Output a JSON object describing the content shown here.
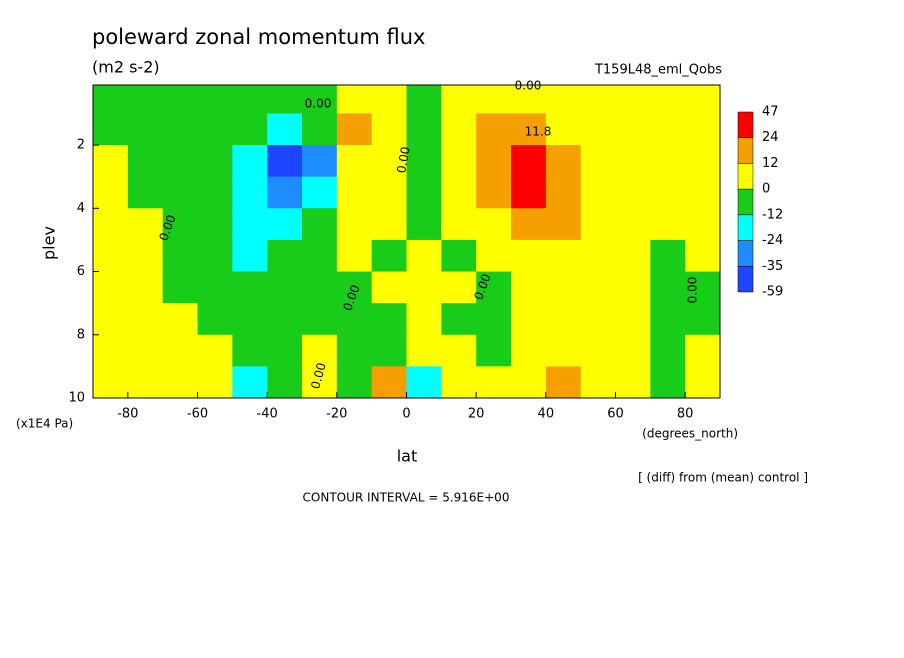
{
  "chart_data": {
    "type": "contourf",
    "title": "poleward zonal momentum flux",
    "subtitle": "(m2 s-2)",
    "dataset": "T159L48_eml_Qobs",
    "x_label": "lat",
    "x_units": "(degrees_north)",
    "y_label": "plev",
    "y_units": "(x1E4 Pa)",
    "note": "[ (diff) from (mean) control ]",
    "contour_interval": "CONTOUR INTERVAL = 5.916E+00",
    "xlim": [
      -90,
      90
    ],
    "ylim": [
      10,
      0.1
    ],
    "xticks": [
      -80,
      -60,
      -40,
      -20,
      0,
      20,
      40,
      60,
      80
    ],
    "yticks": [
      2,
      4,
      6,
      8,
      10
    ],
    "x": [
      -85,
      -75,
      -65,
      -55,
      -45,
      -35,
      -25,
      -15,
      -5,
      5,
      15,
      25,
      35,
      45,
      55,
      65,
      75,
      85
    ],
    "y": [
      0.5,
      1.5,
      2.5,
      3.5,
      4.5,
      5.5,
      6.5,
      7.5,
      8.5,
      9.5
    ],
    "z": [
      [
        -5,
        -5,
        -5,
        -5,
        -5,
        -5,
        -5,
        5,
        5,
        -5,
        5,
        5,
        5,
        5,
        5,
        5,
        5,
        5
      ],
      [
        -5,
        -5,
        -5,
        -5,
        -5,
        -18,
        -5,
        18,
        5,
        -5,
        5,
        18,
        18,
        5,
        5,
        5,
        5,
        5
      ],
      [
        5,
        -5,
        -5,
        -5,
        -18,
        -45,
        -30,
        5,
        5,
        -5,
        5,
        18,
        35,
        18,
        5,
        5,
        5,
        5
      ],
      [
        5,
        -5,
        -5,
        -5,
        -18,
        -30,
        -18,
        5,
        5,
        -5,
        5,
        18,
        35,
        18,
        5,
        5,
        5,
        5
      ],
      [
        5,
        5,
        -5,
        -5,
        -18,
        -18,
        -5,
        5,
        5,
        -5,
        5,
        5,
        18,
        18,
        5,
        5,
        5,
        5
      ],
      [
        5,
        5,
        -5,
        -5,
        -18,
        -5,
        -5,
        5,
        -5,
        5,
        -5,
        5,
        5,
        5,
        5,
        5,
        -5,
        5
      ],
      [
        5,
        5,
        -5,
        -5,
        -5,
        -5,
        -5,
        -5,
        5,
        5,
        5,
        -5,
        5,
        5,
        5,
        5,
        -5,
        -5
      ],
      [
        5,
        5,
        5,
        -5,
        -5,
        -5,
        -5,
        -5,
        -5,
        5,
        -5,
        -5,
        5,
        5,
        5,
        5,
        -5,
        -5
      ],
      [
        5,
        5,
        5,
        5,
        -5,
        -5,
        5,
        -5,
        -5,
        5,
        5,
        -5,
        5,
        5,
        5,
        5,
        -5,
        5
      ],
      [
        5,
        5,
        5,
        5,
        -18,
        -5,
        5,
        -5,
        18,
        -18,
        5,
        5,
        5,
        18,
        5,
        5,
        -5,
        5
      ]
    ],
    "levels": [
      47,
      24,
      12,
      0,
      -12,
      -24,
      -35,
      -59
    ],
    "colors": [
      "#ff0000",
      "#f5a000",
      "#ffff00",
      "#19cc19",
      "#00ffff",
      "#1e8cff",
      "#1e46ff"
    ],
    "contour_labels": [
      "0.00",
      "0.00",
      "0.00",
      "0.00",
      "0.00",
      "0.00",
      "0.00",
      "0.00",
      "11.8"
    ]
  }
}
